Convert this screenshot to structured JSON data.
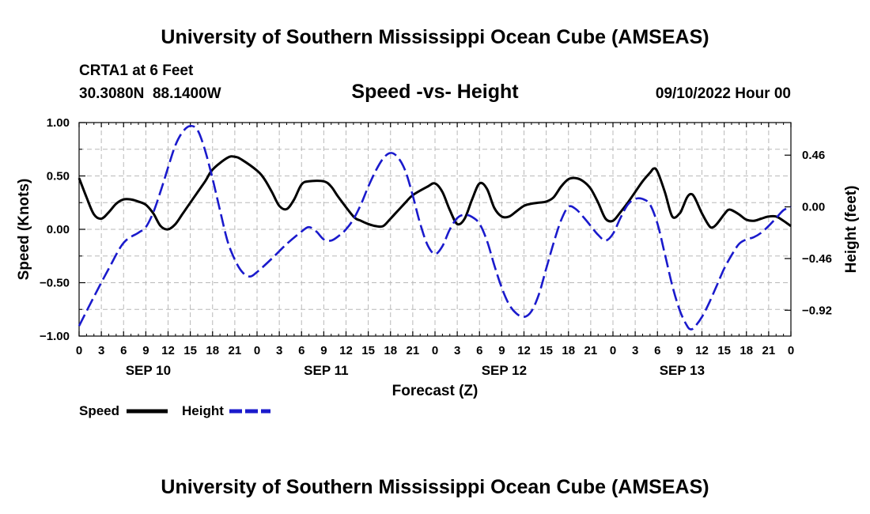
{
  "header": {
    "title": "University of Southern Mississippi Ocean Cube (AMSEAS)",
    "station": "CRTA1 at 6 Feet",
    "coords": "30.3080N  88.1400W",
    "datetime": "09/10/2022 Hour 00",
    "footer_title": "University of Southern Mississippi Ocean Cube (AMSEAS)"
  },
  "chart_data": {
    "type": "line",
    "title": "Speed -vs- Height",
    "xlabel": "Forecast (Z)",
    "ylabel": "Speed (Knots)",
    "y2label": "Height (feet)",
    "x_range_hours": [
      0,
      96
    ],
    "ylim": [
      -1.0,
      1.0
    ],
    "y2lim": [
      -1.15,
      0.75
    ],
    "y_ticks": [
      "1.00",
      "0.50",
      "0.00",
      "−0.50",
      "−1.00"
    ],
    "y_tick_values": [
      1.0,
      0.5,
      0.0,
      -0.5,
      -1.0
    ],
    "y2_ticks": [
      "0.46",
      "0.00",
      "−0.46",
      "−0.92"
    ],
    "y2_tick_values": [
      0.46,
      0.0,
      -0.46,
      -0.92
    ],
    "x_tick_labels": [
      "0",
      "3",
      "6",
      "9",
      "12",
      "15",
      "18",
      "21",
      "0",
      "3",
      "6",
      "9",
      "12",
      "15",
      "18",
      "21",
      "0",
      "3",
      "6",
      "9",
      "12",
      "15",
      "18",
      "21",
      "0",
      "3",
      "6",
      "9",
      "12",
      "15",
      "18",
      "21",
      "0"
    ],
    "day_labels": [
      {
        "label": "SEP 10",
        "hour": 9
      },
      {
        "label": "SEP 11",
        "hour": 33
      },
      {
        "label": "SEP 12",
        "hour": 57
      },
      {
        "label": "SEP 13",
        "hour": 81
      }
    ],
    "grid": true,
    "legend": [
      {
        "name": "Speed",
        "style": "solid",
        "color": "#000000"
      },
      {
        "name": "Height",
        "style": "dashed",
        "color": "#0000cc"
      }
    ],
    "series": [
      {
        "name": "Speed",
        "axis": "left",
        "color": "#000000",
        "dash": false,
        "points": [
          [
            0,
            0.48
          ],
          [
            1,
            0.3
          ],
          [
            2,
            0.14
          ],
          [
            3,
            0.1
          ],
          [
            4,
            0.16
          ],
          [
            5,
            0.24
          ],
          [
            6,
            0.28
          ],
          [
            7,
            0.28
          ],
          [
            8,
            0.26
          ],
          [
            9,
            0.23
          ],
          [
            10,
            0.15
          ],
          [
            11,
            0.03
          ],
          [
            12,
            0.0
          ],
          [
            13,
            0.05
          ],
          [
            14,
            0.15
          ],
          [
            15,
            0.25
          ],
          [
            17,
            0.45
          ],
          [
            18,
            0.56
          ],
          [
            20,
            0.67
          ],
          [
            21,
            0.68
          ],
          [
            22,
            0.65
          ],
          [
            24,
            0.55
          ],
          [
            25,
            0.47
          ],
          [
            26,
            0.35
          ],
          [
            27,
            0.22
          ],
          [
            28,
            0.19
          ],
          [
            29,
            0.28
          ],
          [
            30,
            0.42
          ],
          [
            31,
            0.45
          ],
          [
            33,
            0.45
          ],
          [
            34,
            0.4
          ],
          [
            35,
            0.3
          ],
          [
            37,
            0.12
          ],
          [
            38,
            0.08
          ],
          [
            39,
            0.05
          ],
          [
            40,
            0.03
          ],
          [
            41,
            0.03
          ],
          [
            42,
            0.1
          ],
          [
            44,
            0.25
          ],
          [
            45,
            0.32
          ],
          [
            47,
            0.4
          ],
          [
            48,
            0.43
          ],
          [
            49,
            0.35
          ],
          [
            50,
            0.18
          ],
          [
            51,
            0.05
          ],
          [
            52,
            0.1
          ],
          [
            53,
            0.28
          ],
          [
            54,
            0.43
          ],
          [
            55,
            0.38
          ],
          [
            56,
            0.2
          ],
          [
            57,
            0.12
          ],
          [
            58,
            0.12
          ],
          [
            59,
            0.17
          ],
          [
            60,
            0.22
          ],
          [
            61,
            0.24
          ],
          [
            62,
            0.25
          ],
          [
            63,
            0.26
          ],
          [
            64,
            0.3
          ],
          [
            65,
            0.4
          ],
          [
            66,
            0.47
          ],
          [
            67,
            0.48
          ],
          [
            68,
            0.45
          ],
          [
            69,
            0.38
          ],
          [
            70,
            0.25
          ],
          [
            71,
            0.1
          ],
          [
            72,
            0.08
          ],
          [
            73,
            0.16
          ],
          [
            74,
            0.25
          ],
          [
            75,
            0.35
          ],
          [
            76,
            0.45
          ],
          [
            77,
            0.53
          ],
          [
            77.5,
            0.57
          ],
          [
            78,
            0.54
          ],
          [
            79,
            0.35
          ],
          [
            80,
            0.12
          ],
          [
            81,
            0.15
          ],
          [
            81.5,
            0.22
          ],
          [
            82,
            0.3
          ],
          [
            82.5,
            0.33
          ],
          [
            83,
            0.3
          ],
          [
            84,
            0.15
          ],
          [
            85,
            0.03
          ],
          [
            85.5,
            0.02
          ],
          [
            86,
            0.05
          ],
          [
            87,
            0.14
          ],
          [
            87.5,
            0.18
          ],
          [
            88,
            0.18
          ],
          [
            89,
            0.14
          ],
          [
            90,
            0.09
          ],
          [
            91,
            0.08
          ],
          [
            92,
            0.1
          ],
          [
            93,
            0.12
          ],
          [
            94,
            0.12
          ],
          [
            95,
            0.08
          ],
          [
            96,
            0.03
          ]
        ]
      },
      {
        "name": "Height",
        "axis": "right",
        "color": "#1a1acc",
        "dash": true,
        "points": [
          [
            0,
            -1.06
          ],
          [
            2,
            -0.8
          ],
          [
            4,
            -0.55
          ],
          [
            6,
            -0.32
          ],
          [
            8,
            -0.23
          ],
          [
            9,
            -0.18
          ],
          [
            10,
            -0.05
          ],
          [
            11,
            0.14
          ],
          [
            12,
            0.35
          ],
          [
            13,
            0.55
          ],
          [
            14,
            0.67
          ],
          [
            15,
            0.72
          ],
          [
            16,
            0.68
          ],
          [
            17,
            0.5
          ],
          [
            18,
            0.25
          ],
          [
            19,
            -0.03
          ],
          [
            20,
            -0.3
          ],
          [
            21,
            -0.47
          ],
          [
            22,
            -0.58
          ],
          [
            23,
            -0.62
          ],
          [
            24,
            -0.58
          ],
          [
            26,
            -0.46
          ],
          [
            28,
            -0.33
          ],
          [
            30,
            -0.22
          ],
          [
            31,
            -0.18
          ],
          [
            32,
            -0.22
          ],
          [
            33,
            -0.29
          ],
          [
            34,
            -0.3
          ],
          [
            35,
            -0.26
          ],
          [
            36,
            -0.2
          ],
          [
            37,
            -0.11
          ],
          [
            38,
            0.02
          ],
          [
            39,
            0.18
          ],
          [
            40,
            0.32
          ],
          [
            41,
            0.43
          ],
          [
            42,
            0.48
          ],
          [
            43,
            0.44
          ],
          [
            44,
            0.32
          ],
          [
            45,
            0.1
          ],
          [
            46,
            -0.15
          ],
          [
            47,
            -0.34
          ],
          [
            48,
            -0.42
          ],
          [
            49,
            -0.35
          ],
          [
            50,
            -0.2
          ],
          [
            51,
            -0.1
          ],
          [
            52,
            -0.07
          ],
          [
            53,
            -0.09
          ],
          [
            54,
            -0.15
          ],
          [
            55,
            -0.3
          ],
          [
            56,
            -0.52
          ],
          [
            57,
            -0.72
          ],
          [
            58,
            -0.87
          ],
          [
            59,
            -0.95
          ],
          [
            60,
            -0.98
          ],
          [
            61,
            -0.93
          ],
          [
            62,
            -0.78
          ],
          [
            63,
            -0.55
          ],
          [
            64,
            -0.32
          ],
          [
            65,
            -0.12
          ],
          [
            66,
            0.0
          ],
          [
            67,
            -0.02
          ],
          [
            68,
            -0.09
          ],
          [
            69,
            -0.17
          ],
          [
            70,
            -0.25
          ],
          [
            71,
            -0.3
          ],
          [
            72,
            -0.24
          ],
          [
            73,
            -0.1
          ],
          [
            74,
            0.02
          ],
          [
            75,
            0.07
          ],
          [
            76,
            0.07
          ],
          [
            77,
            0.02
          ],
          [
            78,
            -0.15
          ],
          [
            79,
            -0.42
          ],
          [
            80,
            -0.7
          ],
          [
            81,
            -0.92
          ],
          [
            82,
            -1.06
          ],
          [
            82.5,
            -1.09
          ],
          [
            83,
            -1.07
          ],
          [
            84,
            -0.98
          ],
          [
            85,
            -0.85
          ],
          [
            86,
            -0.7
          ],
          [
            87,
            -0.55
          ],
          [
            88,
            -0.43
          ],
          [
            89,
            -0.33
          ],
          [
            90,
            -0.29
          ],
          [
            91,
            -0.27
          ],
          [
            92,
            -0.23
          ],
          [
            93,
            -0.17
          ],
          [
            94,
            -0.1
          ],
          [
            95,
            -0.03
          ],
          [
            96,
            0.0
          ]
        ]
      }
    ]
  }
}
